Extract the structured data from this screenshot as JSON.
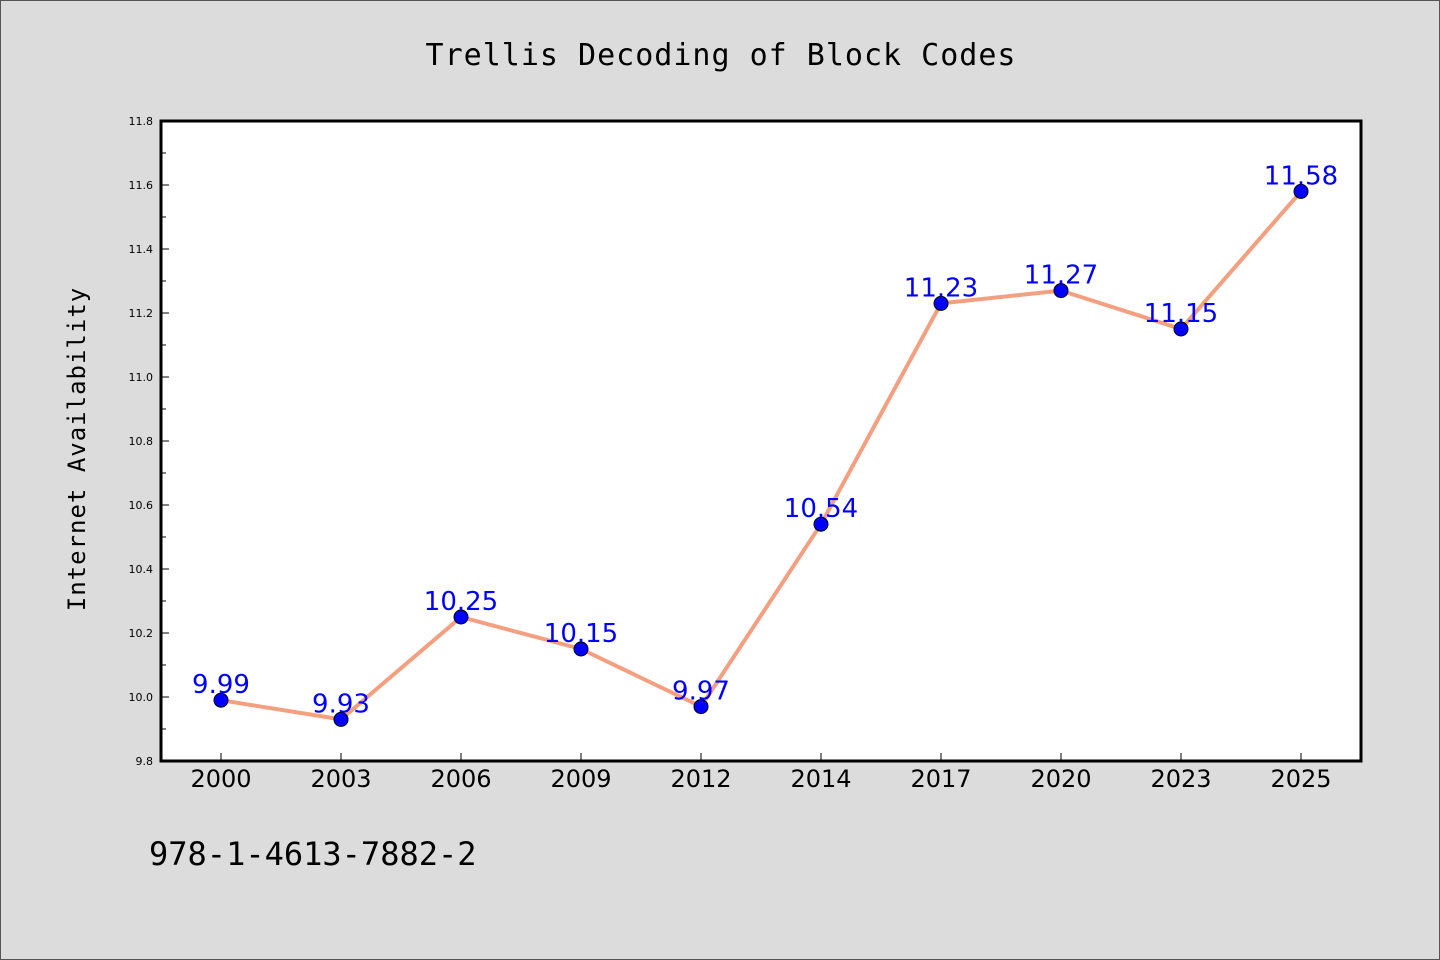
{
  "chart_data": {
    "type": "line",
    "title": "Trellis Decoding of Block Codes",
    "xlabel": "",
    "ylabel": "Internet Availability",
    "categories": [
      "2000",
      "2003",
      "2006",
      "2009",
      "2012",
      "2014",
      "2017",
      "2020",
      "2023",
      "2025"
    ],
    "series": [
      {
        "values": [
          9.99,
          9.93,
          10.25,
          10.15,
          9.97,
          10.54,
          11.23,
          11.27,
          11.15,
          11.58
        ],
        "labels": [
          "9.99",
          "9.93",
          "10.25",
          "10.15",
          "9.97",
          "10.54",
          "11.23",
          "11.27",
          "11.15",
          "11.58"
        ]
      }
    ],
    "ylim": [
      9.8,
      11.8
    ],
    "yticks": [
      "9.8",
      "10.0",
      "10.2",
      "10.4",
      "10.6",
      "10.8",
      "11.0",
      "11.2",
      "11.4",
      "11.6",
      "11.8"
    ],
    "grid": false,
    "colors": {
      "line": "#f4a080",
      "marker": "#0000ff",
      "label": "#0000ff",
      "background": "#dcdcdc",
      "plot_background": "#ffffff"
    }
  },
  "footer": {
    "isbn": "978-1-4613-7882-2"
  }
}
